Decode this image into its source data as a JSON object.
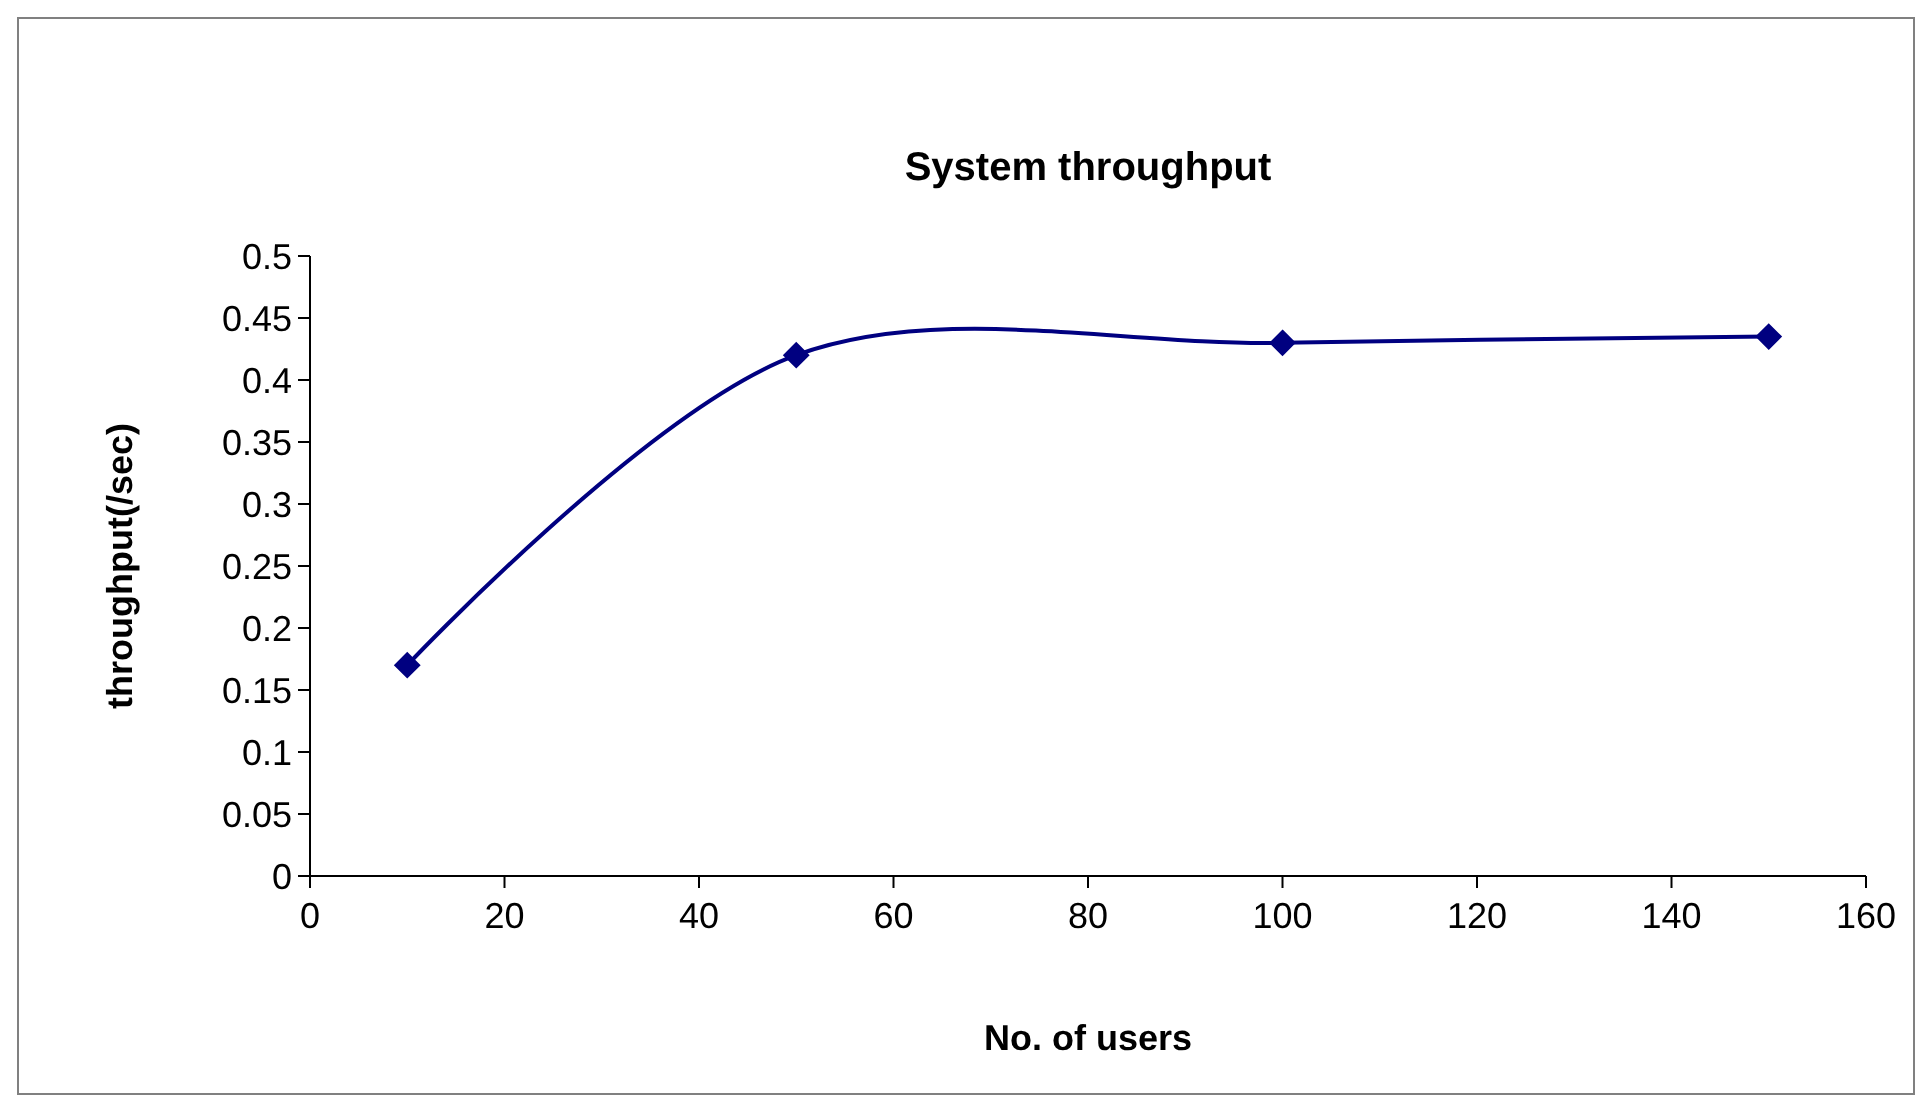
{
  "chart_data": {
    "type": "line",
    "title": "System throughput",
    "xlabel": "No. of users",
    "ylabel": "throughput(/sec)",
    "x": [
      10,
      50,
      100,
      150
    ],
    "series": [
      {
        "color": "#000080",
        "values": [
          0.17,
          0.42,
          0.43,
          0.435
        ]
      }
    ],
    "xlim": [
      0,
      160
    ],
    "xticks": [
      0,
      20,
      40,
      60,
      80,
      100,
      120,
      140,
      160
    ],
    "ylim": [
      0,
      0.5
    ],
    "yticks": [
      0,
      0.05,
      0.1,
      0.15,
      0.2,
      0.25,
      0.3,
      0.35,
      0.4,
      0.45,
      0.5
    ],
    "marker": "diamond",
    "line_style": "solid",
    "grid": false,
    "legend": false
  }
}
